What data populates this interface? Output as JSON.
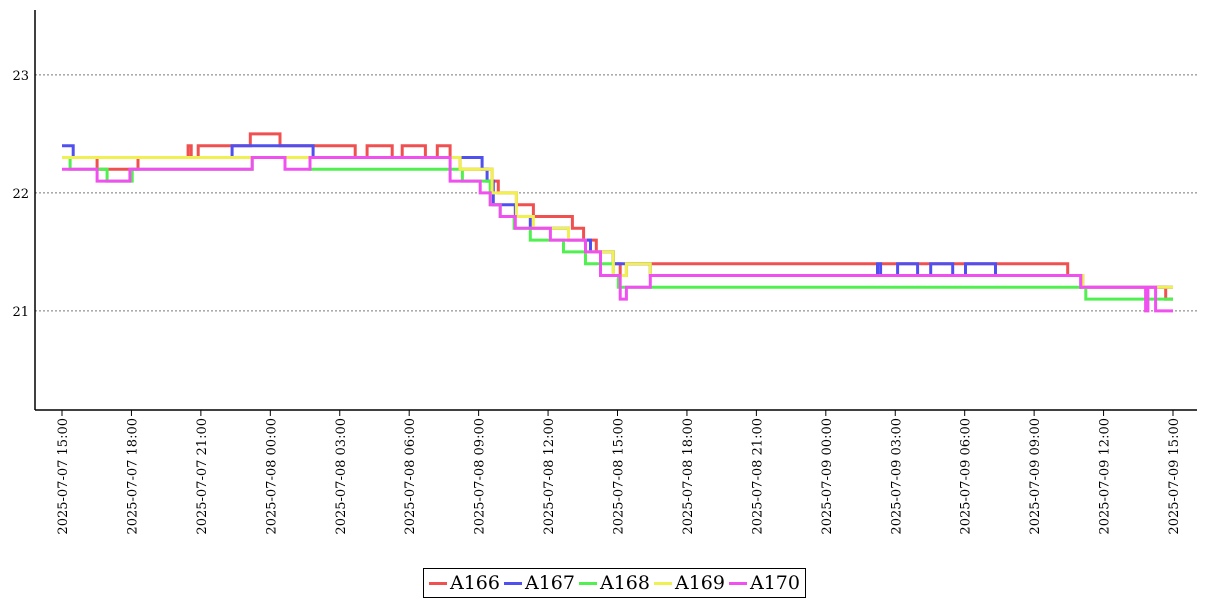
{
  "chart_data": {
    "type": "line",
    "step": true,
    "title": "",
    "xlabel": "",
    "ylabel": "",
    "xlim": [
      "2025-07-07 15:00",
      "2025-07-09 15:00"
    ],
    "ylim": [
      20.16,
      23.55
    ],
    "yticks": [
      21,
      22,
      23
    ],
    "xticks": [
      "2025-07-07  15:00",
      "2025-07-07  18:00",
      "2025-07-07  21:00",
      "2025-07-08  00:00",
      "2025-07-08  03:00",
      "2025-07-08  06:00",
      "2025-07-08  09:00",
      "2025-07-08  12:00",
      "2025-07-08  15:00",
      "2025-07-08  18:00",
      "2025-07-08  21:00",
      "2025-07-09  00:00",
      "2025-07-09  03:00",
      "2025-07-09  06:00",
      "2025-07-09  09:00",
      "2025-07-09  12:00",
      "2025-07-09  15:00"
    ],
    "grid": "horizontal dotted",
    "legend_position": "bottom-center",
    "series": [
      {
        "name": "A166",
        "color": "#f05050",
        "points": [
          [
            "2025-07-07 15:00",
            22.3
          ],
          [
            "2025-07-07 16:31",
            22.2
          ],
          [
            "2025-07-07 18:17",
            22.3
          ],
          [
            "2025-07-07 20:27",
            22.4
          ],
          [
            "2025-07-07 20:35",
            22.3
          ],
          [
            "2025-07-07 20:53",
            22.4
          ],
          [
            "2025-07-07 23:08",
            22.5
          ],
          [
            "2025-07-08 00:25",
            22.4
          ],
          [
            "2025-07-08 03:40",
            22.3
          ],
          [
            "2025-07-08 04:11",
            22.4
          ],
          [
            "2025-07-08 05:16",
            22.3
          ],
          [
            "2025-07-08 05:42",
            22.4
          ],
          [
            "2025-07-08 06:42",
            22.3
          ],
          [
            "2025-07-08 07:13",
            22.4
          ],
          [
            "2025-07-08 07:46",
            22.3
          ],
          [
            "2025-07-08 08:12",
            22.2
          ],
          [
            "2025-07-08 09:35",
            22.1
          ],
          [
            "2025-07-08 09:51",
            22.0
          ],
          [
            "2025-07-08 10:38",
            21.9
          ],
          [
            "2025-07-08 11:22",
            21.8
          ],
          [
            "2025-07-08 13:03",
            21.7
          ],
          [
            "2025-07-08 13:32",
            21.6
          ],
          [
            "2025-07-08 14:05",
            21.5
          ],
          [
            "2025-07-08 14:49",
            21.4
          ],
          [
            "2025-07-08 15:07",
            21.3
          ],
          [
            "2025-07-08 15:23",
            21.4
          ],
          [
            "2025-07-09 10:27",
            21.3
          ],
          [
            "2025-07-09 11:06",
            21.2
          ],
          [
            "2025-07-09 14:41",
            21.1
          ],
          [
            "2025-07-09 15:00",
            21.1
          ]
        ]
      },
      {
        "name": "A167",
        "color": "#5050f0",
        "points": [
          [
            "2025-07-07 15:00",
            22.4
          ],
          [
            "2025-07-07 15:29",
            22.3
          ],
          [
            "2025-07-07 22:21",
            22.4
          ],
          [
            "2025-07-08 01:51",
            22.3
          ],
          [
            "2025-07-08 09:09",
            22.2
          ],
          [
            "2025-07-08 09:22",
            22.1
          ],
          [
            "2025-07-08 09:38",
            21.9
          ],
          [
            "2025-07-08 10:35",
            21.8
          ],
          [
            "2025-07-08 11:14",
            21.7
          ],
          [
            "2025-07-08 12:53",
            21.6
          ],
          [
            "2025-07-08 13:50",
            21.5
          ],
          [
            "2025-07-08 14:49",
            21.4
          ],
          [
            "2025-07-08 16:25",
            21.3
          ],
          [
            "2025-07-09 02:14",
            21.4
          ],
          [
            "2025-07-09 02:22",
            21.3
          ],
          [
            "2025-07-09 03:06",
            21.4
          ],
          [
            "2025-07-09 03:58",
            21.3
          ],
          [
            "2025-07-09 04:32",
            21.4
          ],
          [
            "2025-07-09 05:29",
            21.3
          ],
          [
            "2025-07-09 06:02",
            21.4
          ],
          [
            "2025-07-09 07:20",
            21.3
          ],
          [
            "2025-07-09 11:01",
            21.2
          ],
          [
            "2025-07-09 15:00",
            21.2
          ]
        ]
      },
      {
        "name": "A168",
        "color": "#50f050",
        "points": [
          [
            "2025-07-07 15:00",
            22.3
          ],
          [
            "2025-07-07 15:21",
            22.2
          ],
          [
            "2025-07-07 16:57",
            22.1
          ],
          [
            "2025-07-07 18:02",
            22.2
          ],
          [
            "2025-07-07 23:13",
            22.3
          ],
          [
            "2025-07-08 01:43",
            22.2
          ],
          [
            "2025-07-08 08:18",
            22.1
          ],
          [
            "2025-07-08 09:30",
            21.9
          ],
          [
            "2025-07-08 09:56",
            21.8
          ],
          [
            "2025-07-08 10:32",
            21.7
          ],
          [
            "2025-07-08 11:14",
            21.6
          ],
          [
            "2025-07-08 12:40",
            21.5
          ],
          [
            "2025-07-08 13:37",
            21.4
          ],
          [
            "2025-07-08 14:49",
            21.3
          ],
          [
            "2025-07-08 15:02",
            21.2
          ],
          [
            "2025-07-09 11:14",
            21.1
          ],
          [
            "2025-07-09 15:00",
            21.1
          ]
        ]
      },
      {
        "name": "A169",
        "color": "#f0f050",
        "points": [
          [
            "2025-07-07 15:00",
            22.3
          ],
          [
            "2025-07-08 08:12",
            22.2
          ],
          [
            "2025-07-08 09:35",
            22.0
          ],
          [
            "2025-07-08 10:38",
            21.8
          ],
          [
            "2025-07-08 11:22",
            21.7
          ],
          [
            "2025-07-08 12:53",
            21.6
          ],
          [
            "2025-07-08 13:37",
            21.5
          ],
          [
            "2025-07-08 14:49",
            21.3
          ],
          [
            "2025-07-08 15:23",
            21.4
          ],
          [
            "2025-07-08 16:25",
            21.3
          ],
          [
            "2025-07-09 11:06",
            21.2
          ],
          [
            "2025-07-09 15:00",
            21.2
          ]
        ]
      },
      {
        "name": "A170",
        "color": "#f050f0",
        "points": [
          [
            "2025-07-07 15:00",
            22.2
          ],
          [
            "2025-07-07 16:31",
            22.1
          ],
          [
            "2025-07-07 17:56",
            22.2
          ],
          [
            "2025-07-07 23:13",
            22.3
          ],
          [
            "2025-07-08 00:38",
            22.2
          ],
          [
            "2025-07-08 01:43",
            22.3
          ],
          [
            "2025-07-08 07:46",
            22.1
          ],
          [
            "2025-07-08 09:04",
            22.0
          ],
          [
            "2025-07-08 09:30",
            21.9
          ],
          [
            "2025-07-08 09:56",
            21.8
          ],
          [
            "2025-07-08 10:35",
            21.7
          ],
          [
            "2025-07-08 12:06",
            21.6
          ],
          [
            "2025-07-08 13:37",
            21.5
          ],
          [
            "2025-07-08 14:16",
            21.3
          ],
          [
            "2025-07-08 15:07",
            21.1
          ],
          [
            "2025-07-08 15:23",
            21.2
          ],
          [
            "2025-07-08 16:25",
            21.3
          ],
          [
            "2025-07-09 11:01",
            21.2
          ],
          [
            "2025-07-09 13:49",
            21.0
          ],
          [
            "2025-07-09 13:55",
            21.2
          ],
          [
            "2025-07-09 14:15",
            21.0
          ],
          [
            "2025-07-09 15:00",
            21.0
          ]
        ]
      }
    ]
  }
}
